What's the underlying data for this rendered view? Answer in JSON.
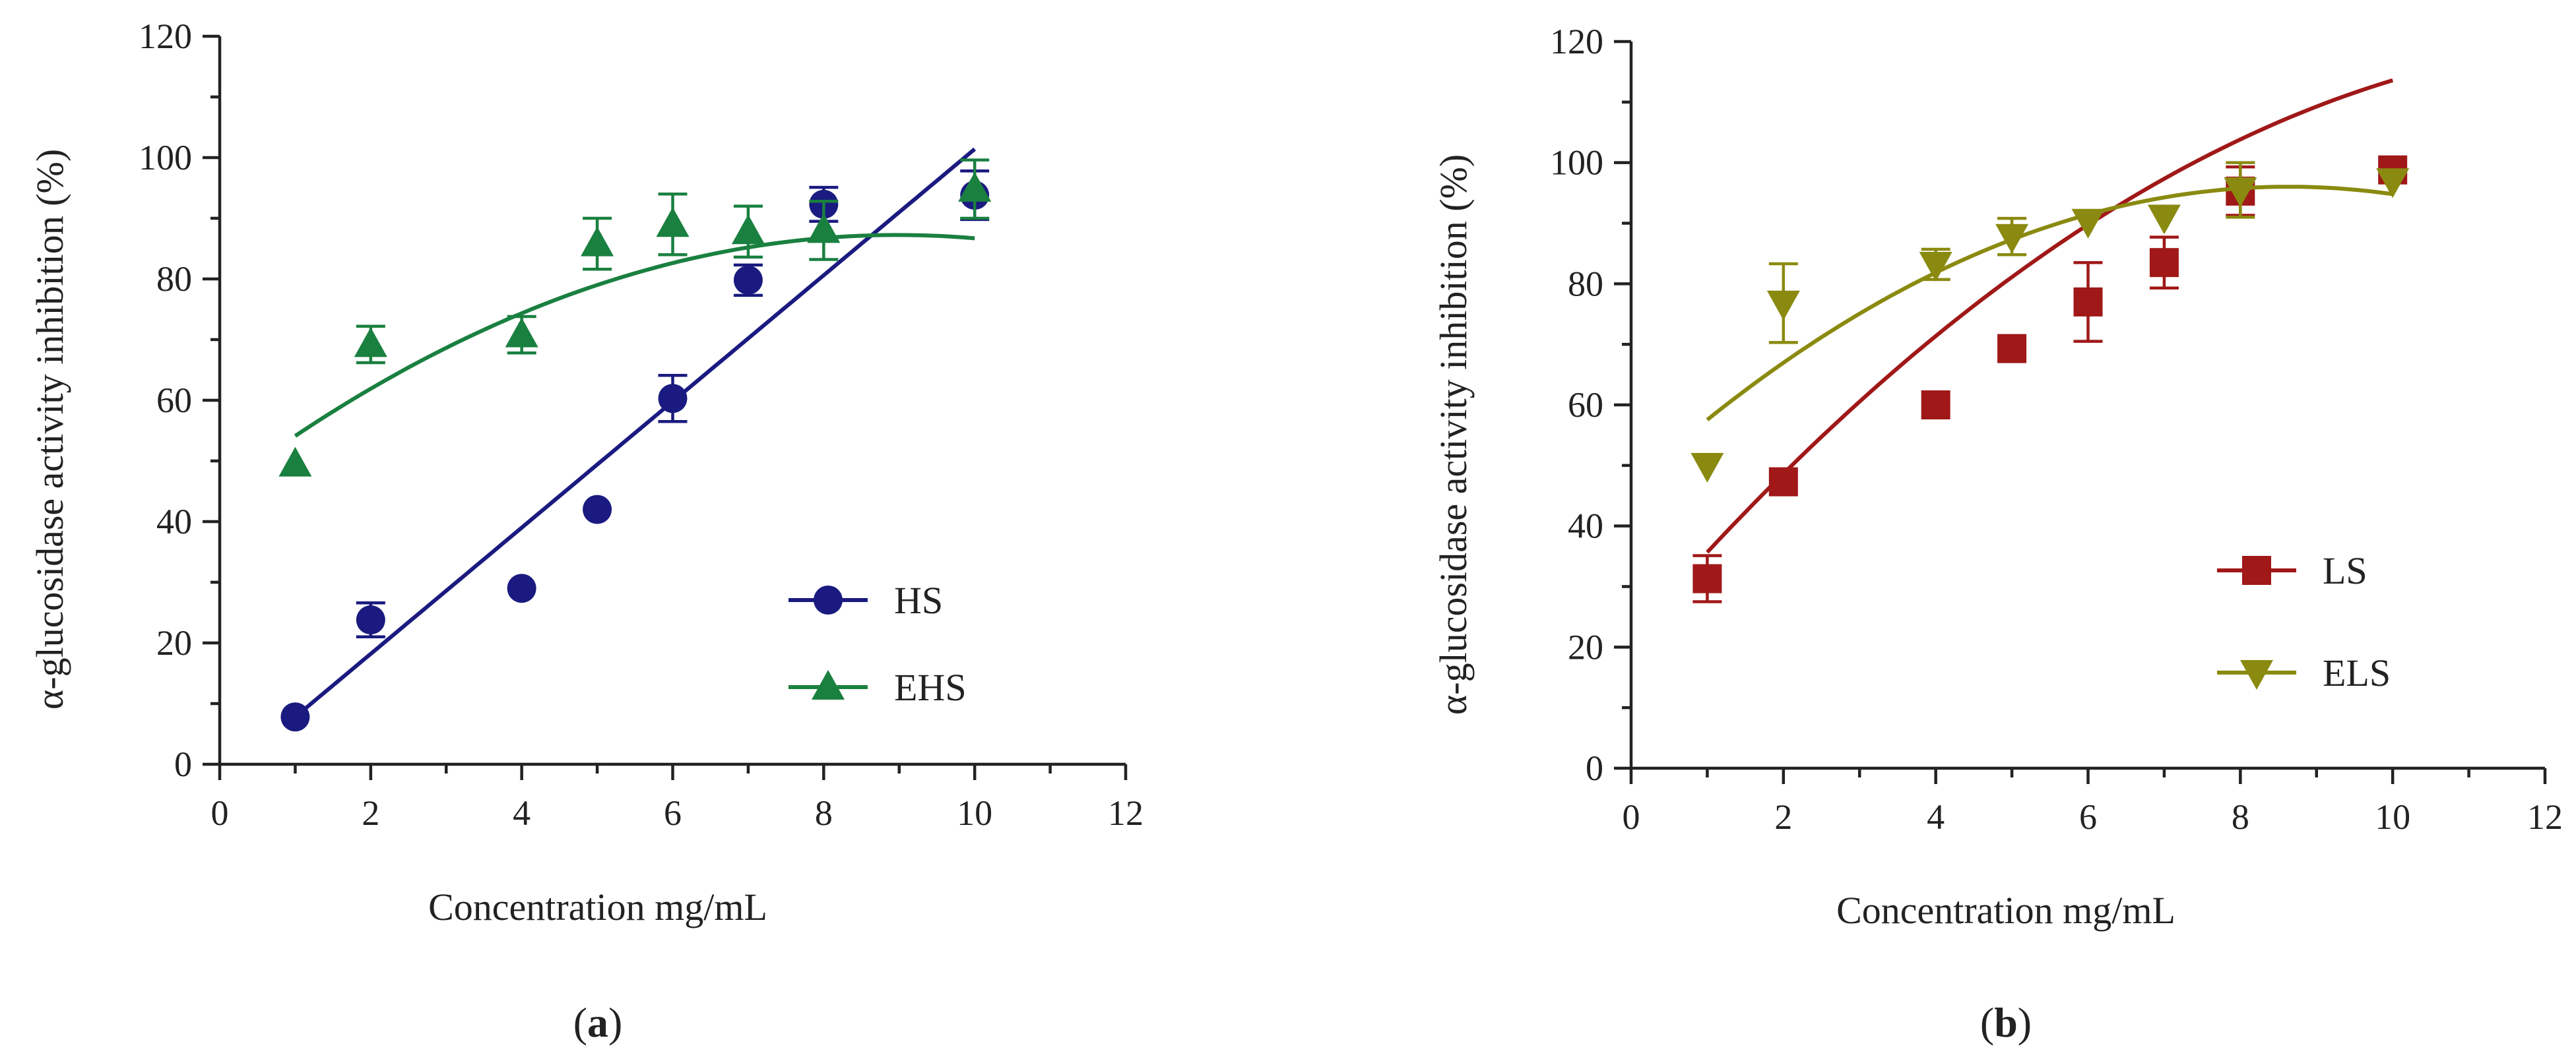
{
  "chart_data": [
    {
      "type": "scatter",
      "panel": "(a)",
      "panel_letter": "a",
      "xlabel": "Concentration mg/mL",
      "ylabel": "α-glucosidase activity inhibition (%)",
      "xlim": [
        0,
        12
      ],
      "ylim": [
        0,
        120
      ],
      "xticks": [
        0,
        2,
        4,
        6,
        8,
        10,
        12
      ],
      "yticks": [
        0,
        20,
        40,
        60,
        80,
        100,
        120
      ],
      "grid": false,
      "legend_position": "bottom-right",
      "series": [
        {
          "name": "HS",
          "marker": "circle",
          "color": "#1a1a80",
          "x": [
            1,
            2,
            4,
            5,
            6,
            7,
            8,
            10
          ],
          "y": [
            7.8,
            23.8,
            29.0,
            42.0,
            60.3,
            79.8,
            92.3,
            93.8
          ],
          "err": [
            0,
            2.8,
            0,
            0,
            3.8,
            2.5,
            2.8,
            4.0
          ],
          "fit": {
            "kind": "linear",
            "x_range": [
              1,
              10
            ],
            "coef": [
              -2.6,
              10.4
            ]
          }
        },
        {
          "name": "EHS",
          "marker": "triangle-up",
          "color": "#1a8040",
          "x": [
            1,
            2,
            4,
            5,
            6,
            7,
            8,
            10
          ],
          "y": [
            49.5,
            69.2,
            70.8,
            85.8,
            89.0,
            87.8,
            88.0,
            94.8
          ],
          "err": [
            0,
            3.0,
            3.0,
            4.2,
            5.0,
            4.2,
            4.8,
            4.8
          ],
          "fit": {
            "kind": "quadratic",
            "x_range": [
              1,
              10
            ],
            "coef": [
              45.3,
              9.34,
              -0.52
            ]
          }
        }
      ]
    },
    {
      "type": "scatter",
      "panel": "(b)",
      "panel_letter": "b",
      "xlabel": "Concentration mg/mL",
      "ylabel": "α-glucosidase activity inhibition (%)",
      "xlim": [
        0,
        12
      ],
      "ylim": [
        0,
        120
      ],
      "xticks": [
        0,
        2,
        4,
        6,
        8,
        10,
        12
      ],
      "yticks": [
        0,
        20,
        40,
        60,
        80,
        100,
        120
      ],
      "grid": false,
      "legend_position": "bottom-right",
      "series": [
        {
          "name": "LS",
          "marker": "square",
          "color": "#a01818",
          "x": [
            1,
            2,
            4,
            5,
            6,
            7,
            8,
            10
          ],
          "y": [
            31.3,
            47.3,
            60.0,
            69.3,
            77.0,
            83.5,
            95.3,
            98.8
          ],
          "err": [
            3.8,
            0,
            0,
            0,
            6.5,
            4.2,
            4.0,
            0
          ],
          "fit": {
            "kind": "quadratic",
            "x_range": [
              1,
              10
            ],
            "coef": [
              21.6,
              14.6,
              -0.54
            ]
          }
        },
        {
          "name": "ELS",
          "marker": "triangle-down",
          "color": "#8a8a10",
          "x": [
            1,
            2,
            4,
            5,
            6,
            7,
            8,
            10
          ],
          "y": [
            50.0,
            76.8,
            83.2,
            87.8,
            90.3,
            91.0,
            95.5,
            97.0
          ],
          "err": [
            0,
            6.5,
            2.5,
            3.0,
            0,
            0,
            4.5,
            0
          ],
          "fit": {
            "kind": "quadratic",
            "x_range": [
              1,
              10
            ],
            "coef": [
              46.8,
              11.4,
              -0.66
            ]
          }
        }
      ]
    }
  ]
}
